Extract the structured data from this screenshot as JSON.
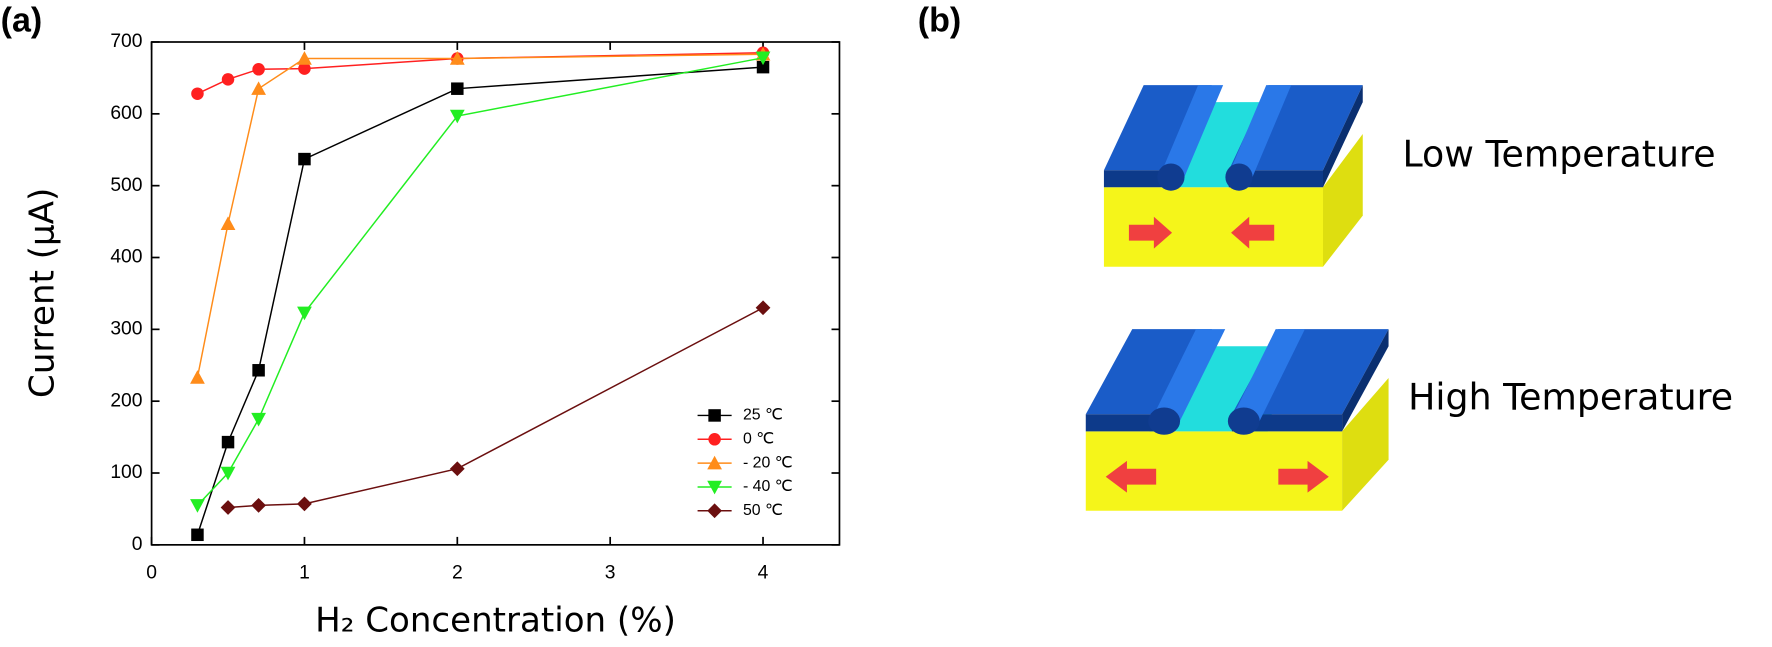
{
  "chart_data": {
    "type": "line",
    "xlabel": "H₂ Concentration (%)",
    "ylabel": "Current (μA)",
    "x": [
      0.3,
      0.5,
      0.7,
      1,
      2,
      4
    ],
    "series": [
      {
        "name": "25 ℃",
        "color": "#000000",
        "marker": "square",
        "values": [
          14,
          143,
          243,
          537,
          635,
          665
        ]
      },
      {
        "name": "0 ℃",
        "color": "#ff2020",
        "marker": "circle",
        "values": [
          628,
          648,
          662,
          663,
          677,
          685
        ]
      },
      {
        "name": "- 20 ℃",
        "color": "#ff8c1a",
        "marker": "triangle-up",
        "values": [
          233,
          447,
          635,
          677,
          677,
          683
        ]
      },
      {
        "name": "- 40 ℃",
        "color": "#22ee22",
        "marker": "triangle-down",
        "values": [
          55,
          100,
          175,
          323,
          597,
          678
        ]
      },
      {
        "name": "50 ℃",
        "color": "#6b0f0f",
        "marker": "diamond",
        "values": [
          null,
          52,
          55,
          57,
          106,
          330
        ]
      }
    ],
    "xlim": [
      0,
      4.5
    ],
    "xticks": [
      0,
      1,
      2,
      3,
      4
    ],
    "ylim": [
      0,
      700
    ],
    "yticks": [
      0,
      100,
      200,
      300,
      400,
      500,
      600,
      700
    ],
    "legend": "lower right"
  },
  "panels": [
    "(a)",
    "(b)"
  ],
  "diagram": {
    "labels": [
      "Low Temperature",
      "High Temperature"
    ]
  }
}
